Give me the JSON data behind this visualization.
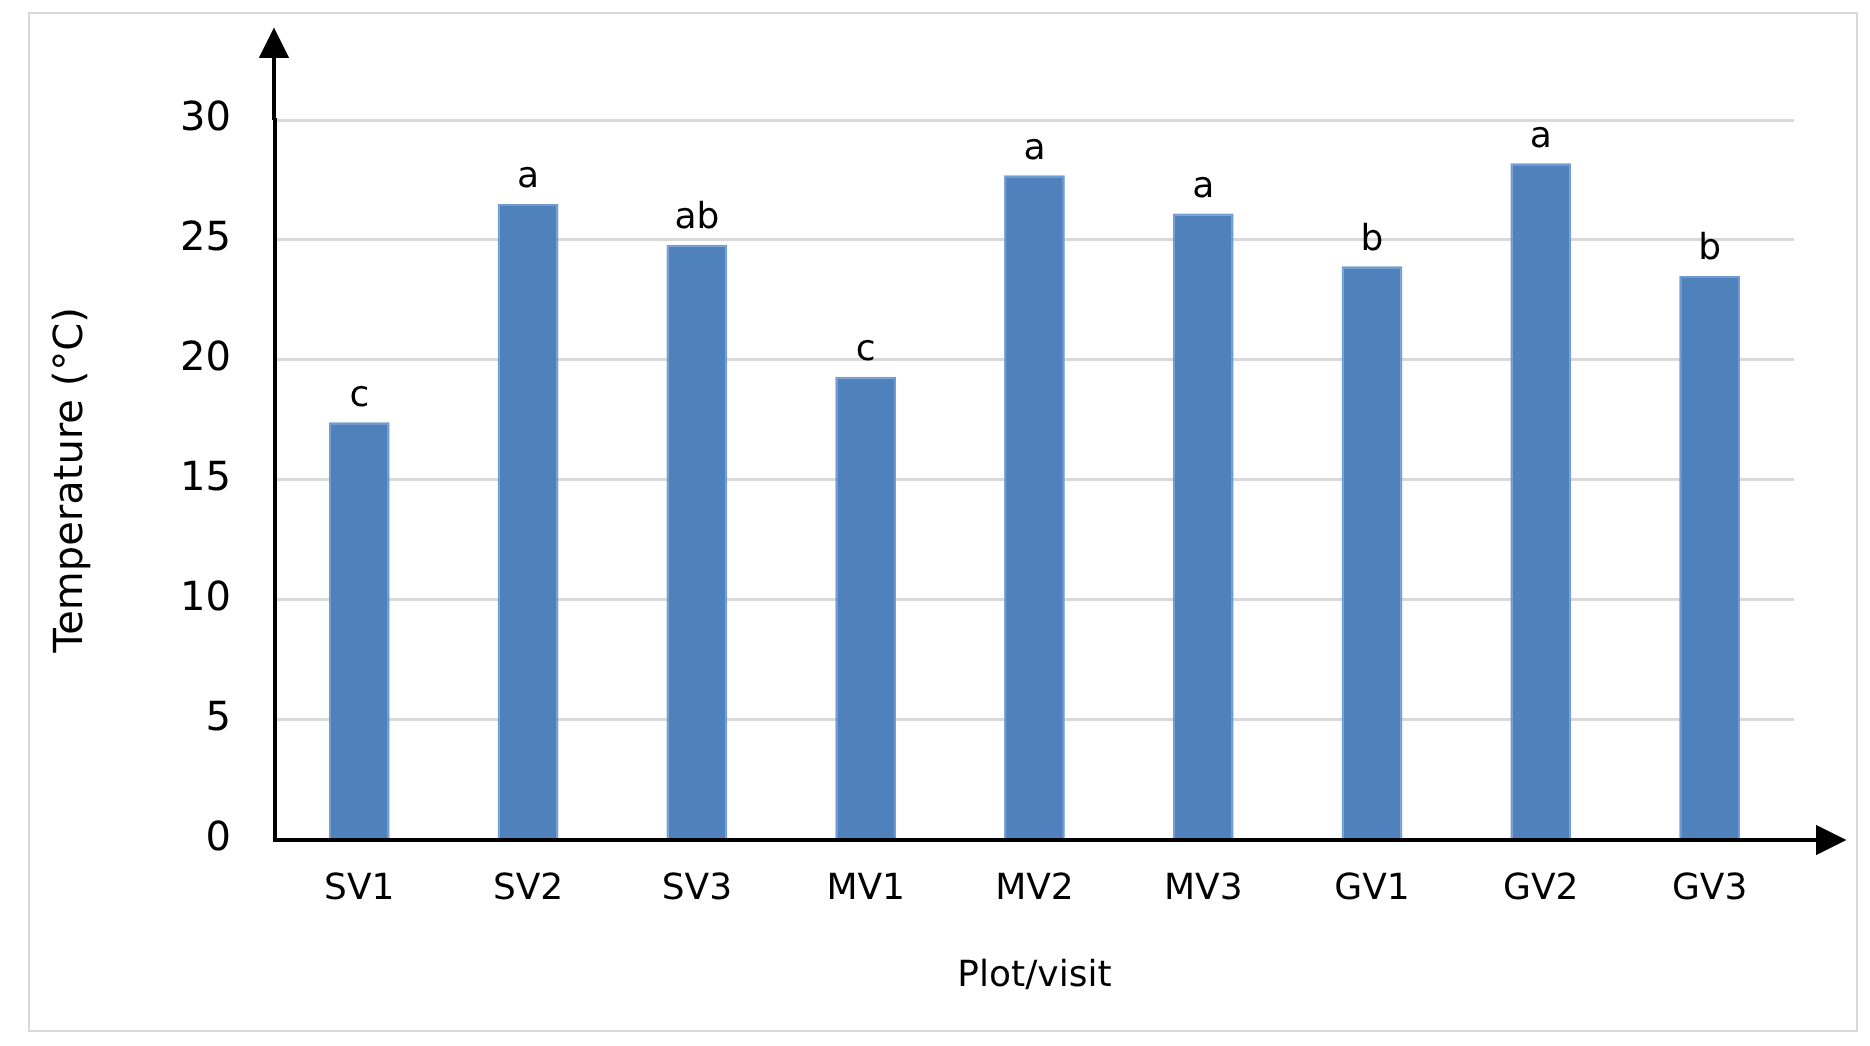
{
  "chart_data": {
    "type": "bar",
    "xlabel": "Plot/visit",
    "ylabel": "Temperature (°C)",
    "categories": [
      "SV1",
      "SV2",
      "SV3",
      "MV1",
      "MV2",
      "MV3",
      "GV1",
      "GV2",
      "GV3"
    ],
    "values": [
      17.4,
      26.5,
      24.8,
      19.3,
      27.7,
      26.1,
      23.9,
      28.2,
      23.5
    ],
    "color": "#4f81bd",
    "ylim": [
      0,
      30
    ],
    "yticks": [
      0,
      5,
      10,
      15,
      20,
      25,
      30
    ],
    "grid": "y",
    "legend": false,
    "annotations": [
      {
        "text": "c",
        "x": "SV1",
        "y": 17.4
      },
      {
        "text": "a",
        "x": "SV2",
        "y": 26.5
      },
      {
        "text": "ab",
        "x": "SV3",
        "y": 24.8
      },
      {
        "text": "c",
        "x": "MV1",
        "y": 19.3
      },
      {
        "text": "a",
        "x": "MV2",
        "y": 27.7
      },
      {
        "text": "a",
        "x": "MV3",
        "y": 26.1
      },
      {
        "text": "b",
        "x": "GV1",
        "y": 23.9
      },
      {
        "text": "a",
        "x": "GV2",
        "y": 28.2
      },
      {
        "text": "b",
        "x": "GV3",
        "y": 23.5
      }
    ]
  }
}
